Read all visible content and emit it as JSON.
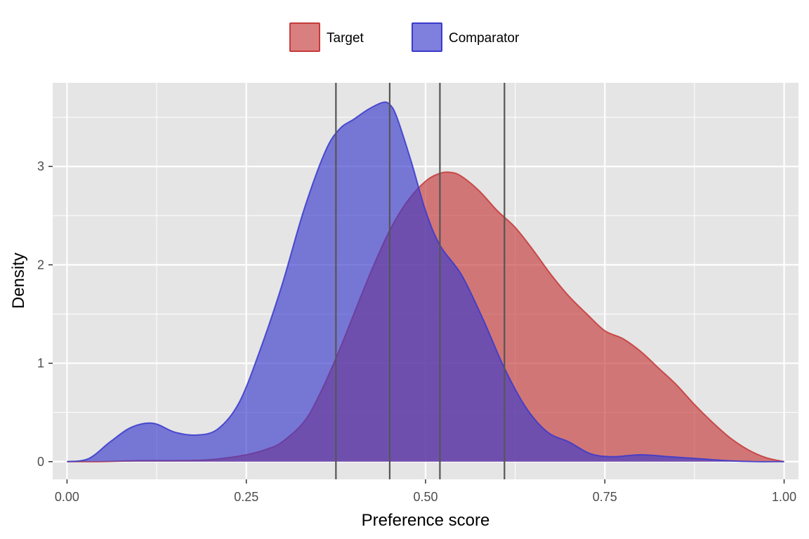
{
  "chart_data": {
    "type": "area",
    "title": "",
    "xlabel": "Preference score",
    "ylabel": "Density",
    "xlim": [
      -0.02,
      1.02
    ],
    "ylim": [
      -0.18,
      3.85
    ],
    "x_ticks": [
      0.0,
      0.25,
      0.5,
      0.75,
      1.0
    ],
    "x_tick_labels": [
      "0.00",
      "0.25",
      "0.50",
      "0.75",
      "1.00"
    ],
    "y_ticks": [
      0,
      1,
      2,
      3
    ],
    "y_tick_labels": [
      "0",
      "1",
      "2",
      "3"
    ],
    "grid": true,
    "legend_position": "top",
    "colors": {
      "panel_bg": "#e5e5e5",
      "grid": "#ffffff",
      "target_fill": "#c63a3a",
      "comparator_fill": "#3a3acc",
      "overlap": "#6b2fa0",
      "vline": "#555555"
    },
    "series": [
      {
        "name": "Target",
        "color": "#c63a3a",
        "x": [
          0.0,
          0.05,
          0.1,
          0.15,
          0.2,
          0.25,
          0.28,
          0.3,
          0.33,
          0.35,
          0.375,
          0.4,
          0.425,
          0.45,
          0.475,
          0.5,
          0.52,
          0.535,
          0.55,
          0.575,
          0.6,
          0.625,
          0.65,
          0.675,
          0.7,
          0.725,
          0.75,
          0.775,
          0.8,
          0.825,
          0.85,
          0.875,
          0.9,
          0.925,
          0.95,
          0.975,
          1.0
        ],
        "y": [
          0.0,
          0.0,
          0.01,
          0.01,
          0.02,
          0.07,
          0.13,
          0.2,
          0.4,
          0.65,
          1.05,
          1.5,
          1.95,
          2.35,
          2.65,
          2.85,
          2.93,
          2.94,
          2.9,
          2.75,
          2.55,
          2.38,
          2.15,
          1.9,
          1.68,
          1.5,
          1.33,
          1.25,
          1.12,
          0.95,
          0.78,
          0.58,
          0.4,
          0.24,
          0.12,
          0.04,
          0.0
        ]
      },
      {
        "name": "Comparator",
        "color": "#3a3acc",
        "x": [
          0.0,
          0.03,
          0.06,
          0.09,
          0.12,
          0.15,
          0.18,
          0.21,
          0.24,
          0.27,
          0.3,
          0.33,
          0.36,
          0.38,
          0.4,
          0.42,
          0.44,
          0.45,
          0.46,
          0.48,
          0.5,
          0.52,
          0.55,
          0.58,
          0.61,
          0.64,
          0.67,
          0.7,
          0.73,
          0.76,
          0.8,
          0.84,
          0.88,
          0.92,
          0.96,
          1.0
        ],
        "y": [
          0.0,
          0.03,
          0.2,
          0.35,
          0.39,
          0.3,
          0.27,
          0.33,
          0.6,
          1.15,
          1.8,
          2.55,
          3.15,
          3.38,
          3.48,
          3.58,
          3.65,
          3.63,
          3.5,
          3.05,
          2.55,
          2.2,
          1.9,
          1.45,
          0.95,
          0.55,
          0.3,
          0.2,
          0.08,
          0.05,
          0.07,
          0.05,
          0.03,
          0.01,
          0.0,
          0.0
        ]
      }
    ],
    "reference_lines_x": [
      0.375,
      0.45,
      0.52,
      0.61
    ]
  }
}
